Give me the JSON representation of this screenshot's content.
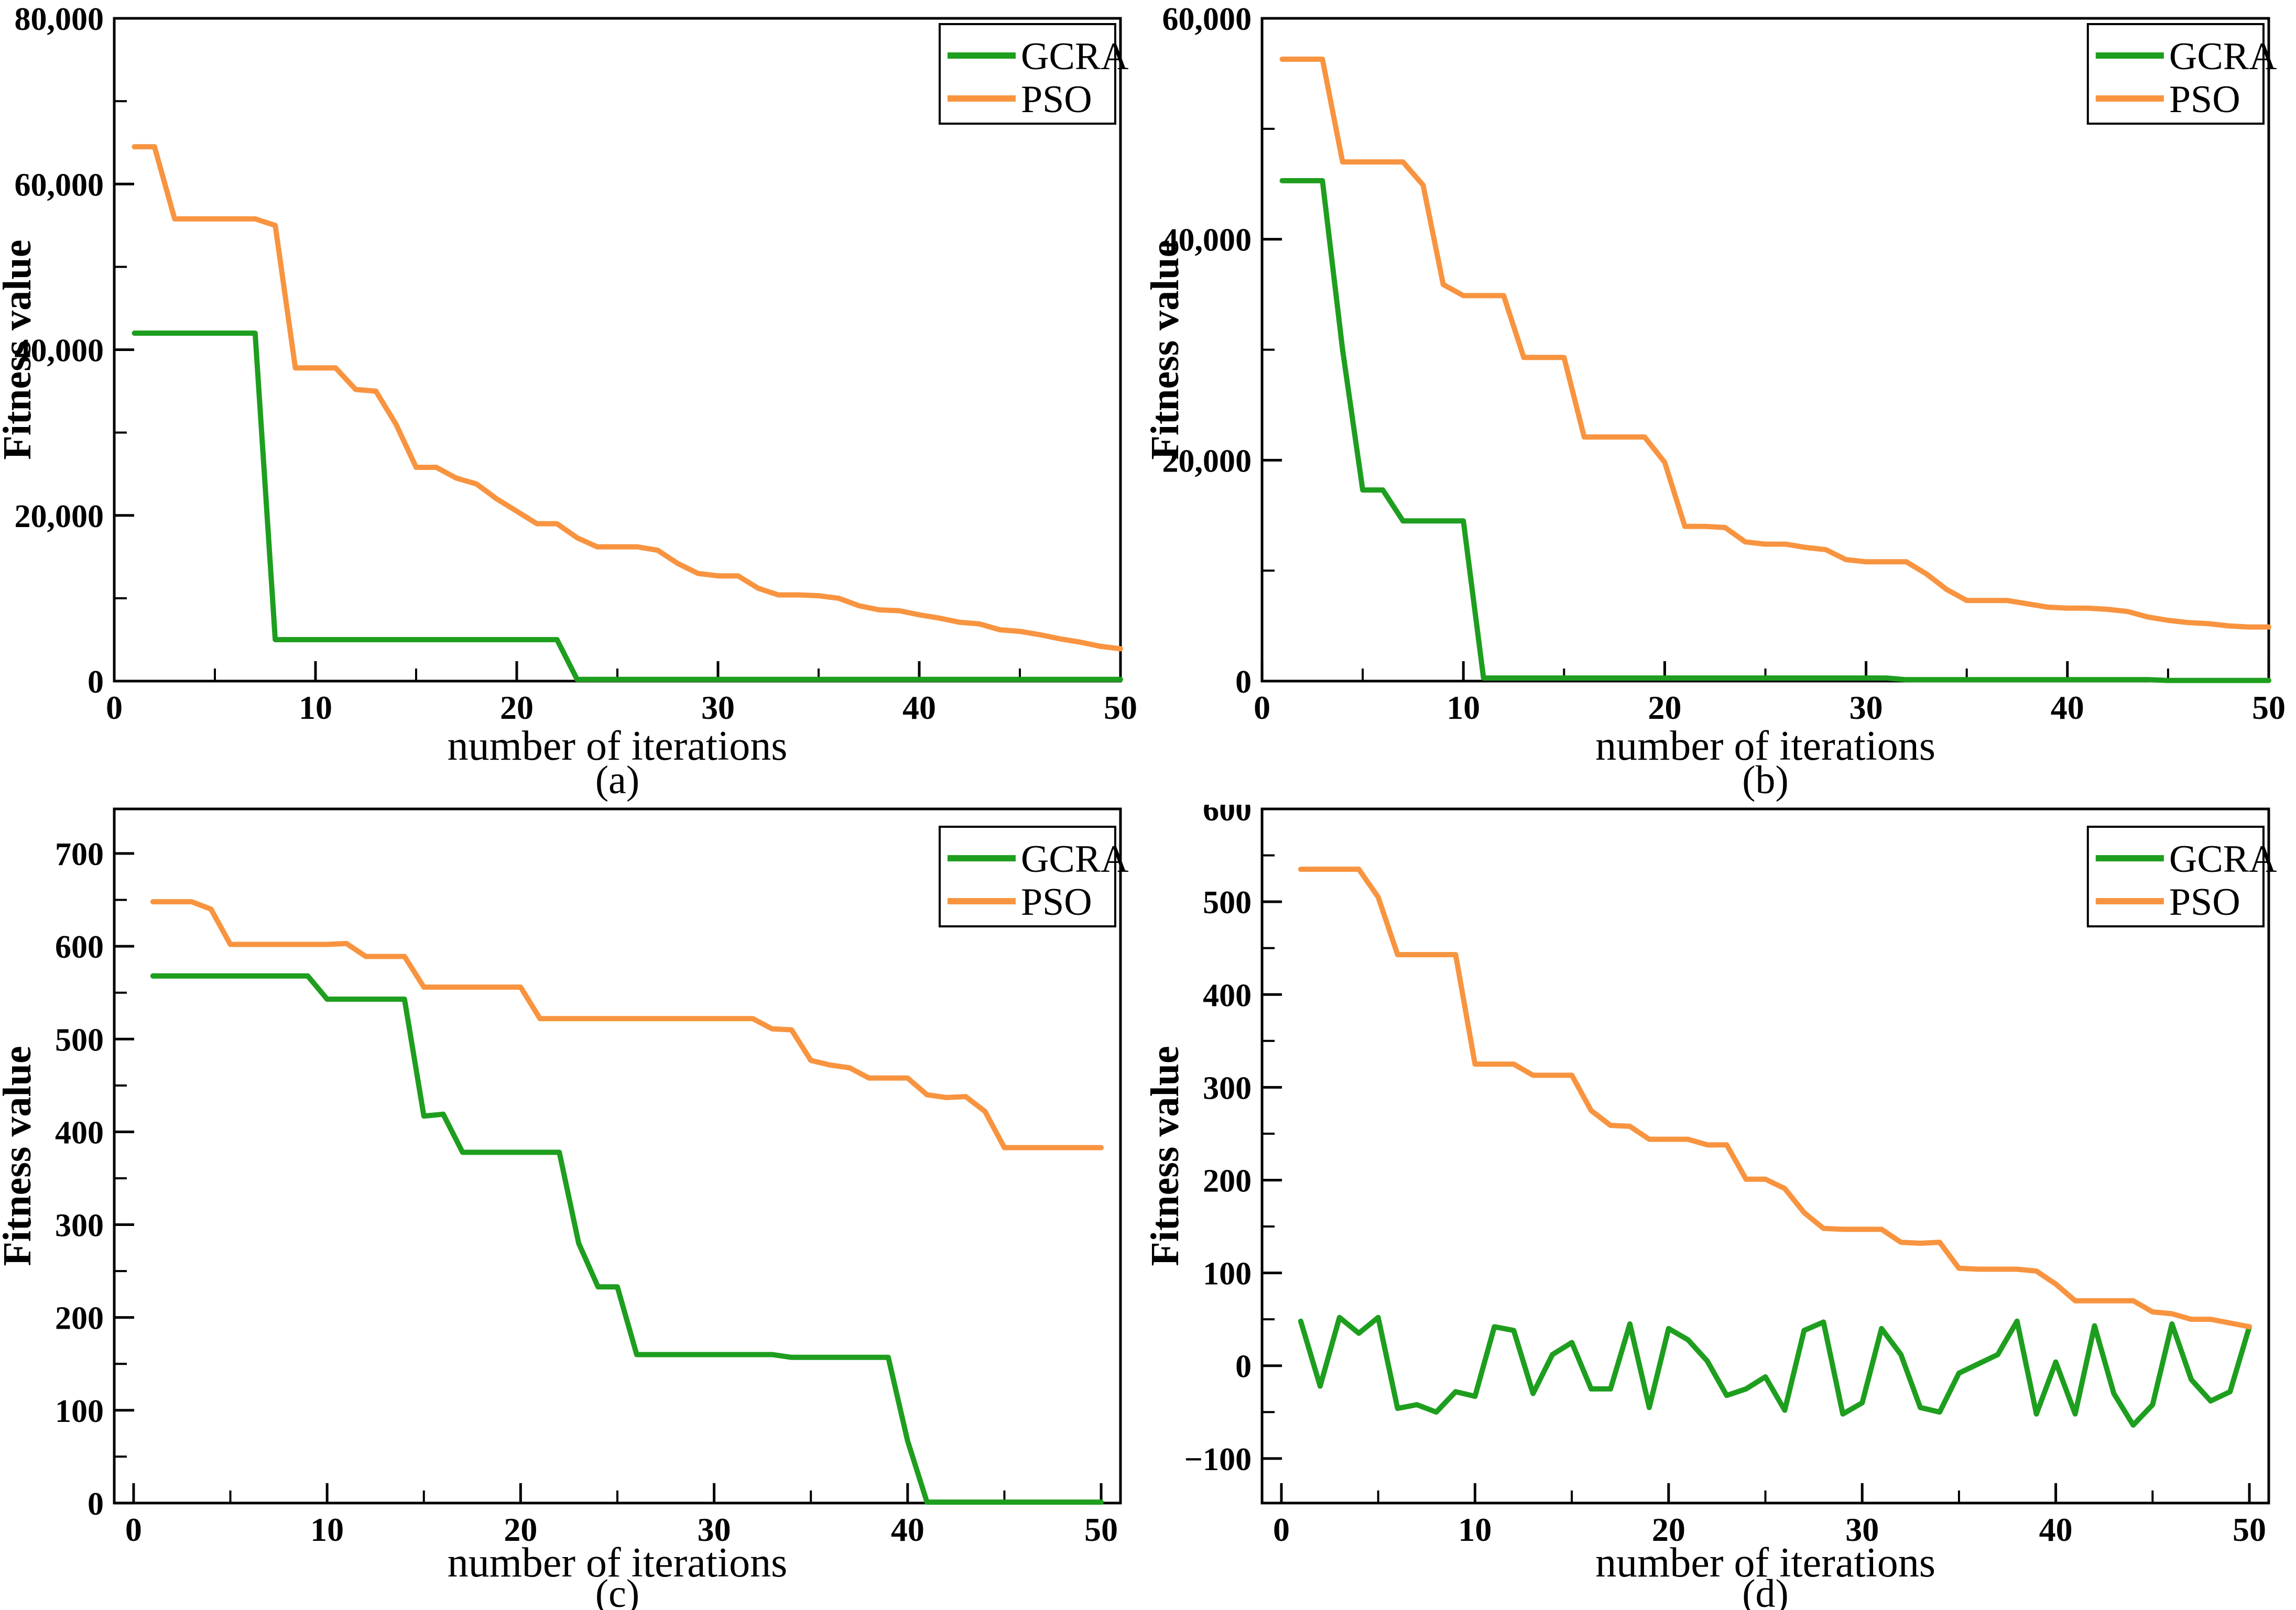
{
  "figure": {
    "background": "#ffffff",
    "legend_items": [
      "GCRA",
      "PSO"
    ]
  },
  "colors": {
    "gcra": "#1e9e1e",
    "pso": "#f89440",
    "axis": "#000000",
    "text": "#000000"
  },
  "chart_data": [
    {
      "type": "line",
      "panel": "(a)",
      "xlabel": "number of iterations",
      "ylabel": "Fitness value",
      "x_range": [
        1,
        50
      ],
      "xlim": [
        0,
        50
      ],
      "ylim": [
        0,
        80000
      ],
      "x_major_ticks": [
        0,
        10,
        20,
        30,
        40,
        50
      ],
      "x_minor_step": 5,
      "y_major_ticks": [
        0,
        20000,
        40000,
        60000,
        80000
      ],
      "y_tick_labels": [
        "0",
        "20,000",
        "40,000",
        "60,000",
        "80,000"
      ],
      "y_minor_step": 10000,
      "grid": "off",
      "legend_position": "top-right",
      "series": [
        {
          "name": "GCRA",
          "color_key": "gcra",
          "values": [
            42000,
            42000,
            42000,
            42000,
            42000,
            42000,
            42000,
            5000,
            5000,
            5000,
            5000,
            5000,
            5000,
            5000,
            5000,
            5000,
            5000,
            5000,
            5000,
            5000,
            5000,
            5000,
            200,
            200,
            200,
            200,
            200,
            200,
            200,
            200,
            200,
            200,
            200,
            200,
            200,
            200,
            200,
            200,
            200,
            200,
            200,
            200,
            200,
            200,
            200,
            200,
            200,
            200,
            200,
            200
          ]
        },
        {
          "name": "PSO",
          "color_key": "pso",
          "values": [
            64500,
            64500,
            55800,
            55800,
            55800,
            55800,
            55800,
            55000,
            37800,
            37800,
            37800,
            35200,
            35000,
            31000,
            25800,
            25800,
            24500,
            23800,
            22000,
            20500,
            19000,
            19000,
            17300,
            16200,
            16200,
            16200,
            15800,
            14200,
            13000,
            12700,
            12700,
            11200,
            10400,
            10400,
            10300,
            10000,
            9100,
            8600,
            8500,
            8000,
            7600,
            7100,
            6900,
            6200,
            6000,
            5600,
            5100,
            4700,
            4200,
            3900
          ]
        }
      ]
    },
    {
      "type": "line",
      "panel": "(b)",
      "xlabel": "number of iterations",
      "ylabel": "Fitness value",
      "x_range": [
        1,
        50
      ],
      "xlim": [
        0,
        50
      ],
      "ylim": [
        0,
        60000
      ],
      "x_major_ticks": [
        0,
        10,
        20,
        30,
        40,
        50
      ],
      "x_minor_step": 5,
      "y_major_ticks": [
        0,
        20000,
        40000,
        60000
      ],
      "y_tick_labels": [
        "0",
        "20,000",
        "40,000",
        "60,000"
      ],
      "y_minor_step": 10000,
      "grid": "off",
      "legend_position": "top-right",
      "series": [
        {
          "name": "GCRA",
          "color_key": "gcra",
          "values": [
            45300,
            45300,
            45300,
            30000,
            17300,
            17300,
            14500,
            14500,
            14500,
            14500,
            280,
            280,
            280,
            280,
            280,
            280,
            280,
            280,
            280,
            280,
            280,
            280,
            280,
            280,
            280,
            280,
            280,
            280,
            280,
            280,
            280,
            130,
            130,
            130,
            130,
            130,
            130,
            130,
            130,
            130,
            130,
            130,
            130,
            130,
            60,
            60,
            60,
            60,
            60,
            60
          ]
        },
        {
          "name": "PSO",
          "color_key": "pso",
          "values": [
            56300,
            56300,
            56300,
            47000,
            47000,
            47000,
            47000,
            44900,
            35900,
            34900,
            34900,
            34900,
            29300,
            29300,
            29300,
            22100,
            22100,
            22100,
            22100,
            19800,
            14000,
            14000,
            13900,
            12600,
            12400,
            12400,
            12100,
            11900,
            11000,
            10800,
            10800,
            10800,
            9700,
            8300,
            7300,
            7300,
            7300,
            7000,
            6700,
            6600,
            6600,
            6500,
            6300,
            5800,
            5500,
            5300,
            5200,
            5000,
            4900,
            4900
          ]
        }
      ]
    },
    {
      "type": "line",
      "panel": "(c)",
      "xlabel": "number of iterations",
      "ylabel": "Fitness value",
      "x_range": [
        1,
        50
      ],
      "xlim": [
        -1,
        51
      ],
      "ylim": [
        0,
        748
      ],
      "x_major_ticks": [
        0,
        10,
        20,
        30,
        40,
        50
      ],
      "x_minor_step": 5,
      "y_major_ticks": [
        0,
        100,
        200,
        300,
        400,
        500,
        600,
        700
      ],
      "y_tick_labels": [
        "0",
        "100",
        "200",
        "300",
        "400",
        "500",
        "600",
        "700"
      ],
      "y_minor_step": 50,
      "grid": "off",
      "legend_position": "top-right",
      "series": [
        {
          "name": "GCRA",
          "color_key": "gcra",
          "values": [
            568,
            568,
            568,
            568,
            568,
            568,
            568,
            568,
            568,
            543,
            543,
            543,
            543,
            543,
            417,
            419,
            378,
            378,
            378,
            378,
            378,
            378,
            280,
            233,
            233,
            160,
            160,
            160,
            160,
            160,
            160,
            160,
            160,
            157,
            157,
            157,
            157,
            157,
            157,
            67,
            1,
            1,
            1,
            1,
            1,
            1,
            1,
            1,
            1,
            1
          ]
        },
        {
          "name": "PSO",
          "color_key": "pso",
          "values": [
            648,
            648,
            648,
            640,
            602,
            602,
            602,
            602,
            602,
            602,
            603,
            589,
            589,
            589,
            556,
            556,
            556,
            556,
            556,
            556,
            522,
            522,
            522,
            522,
            522,
            522,
            522,
            522,
            522,
            522,
            522,
            522,
            511,
            510,
            477,
            472,
            469,
            458,
            458,
            458,
            440,
            437,
            438,
            422,
            383,
            383,
            383,
            383,
            383,
            383
          ]
        }
      ]
    },
    {
      "type": "line",
      "panel": "(d)",
      "xlabel": "number of iterations",
      "ylabel": "Fitness value",
      "x_range": [
        1,
        50
      ],
      "xlim": [
        -1,
        51
      ],
      "ylim": [
        -148,
        600
      ],
      "x_major_ticks": [
        0,
        10,
        20,
        30,
        40,
        50
      ],
      "x_minor_step": 5,
      "y_major_ticks": [
        -100,
        0,
        100,
        200,
        300,
        400,
        500,
        600
      ],
      "y_tick_labels": [
        "−100",
        "0",
        "100",
        "200",
        "300",
        "400",
        "500",
        "600"
      ],
      "y_minor_step": 50,
      "grid": "off",
      "legend_position": "top-right",
      "series": [
        {
          "name": "GCRA",
          "color_key": "gcra",
          "values": [
            48,
            -22,
            52,
            35,
            52,
            -46,
            -42,
            -50,
            -28,
            -33,
            42,
            38,
            -30,
            12,
            25,
            -25,
            -25,
            45,
            -45,
            40,
            28,
            5,
            -32,
            -25,
            -12,
            -48,
            38,
            47,
            -52,
            -40,
            40,
            12,
            -45,
            -50,
            -8,
            2,
            12,
            48,
            -52,
            4,
            -52,
            43,
            -30,
            -64,
            -42,
            45,
            -15,
            -38,
            -28,
            42
          ]
        },
        {
          "name": "PSO",
          "color_key": "pso",
          "values": [
            535,
            535,
            535,
            535,
            505,
            443,
            443,
            443,
            443,
            325,
            325,
            325,
            313,
            313,
            313,
            275,
            259,
            258,
            244,
            244,
            244,
            238,
            238,
            201,
            201,
            191,
            165,
            148,
            147,
            147,
            147,
            133,
            132,
            133,
            105,
            104,
            104,
            104,
            102,
            88,
            70,
            70,
            70,
            70,
            58,
            56,
            50,
            50,
            46,
            42
          ]
        }
      ]
    }
  ]
}
